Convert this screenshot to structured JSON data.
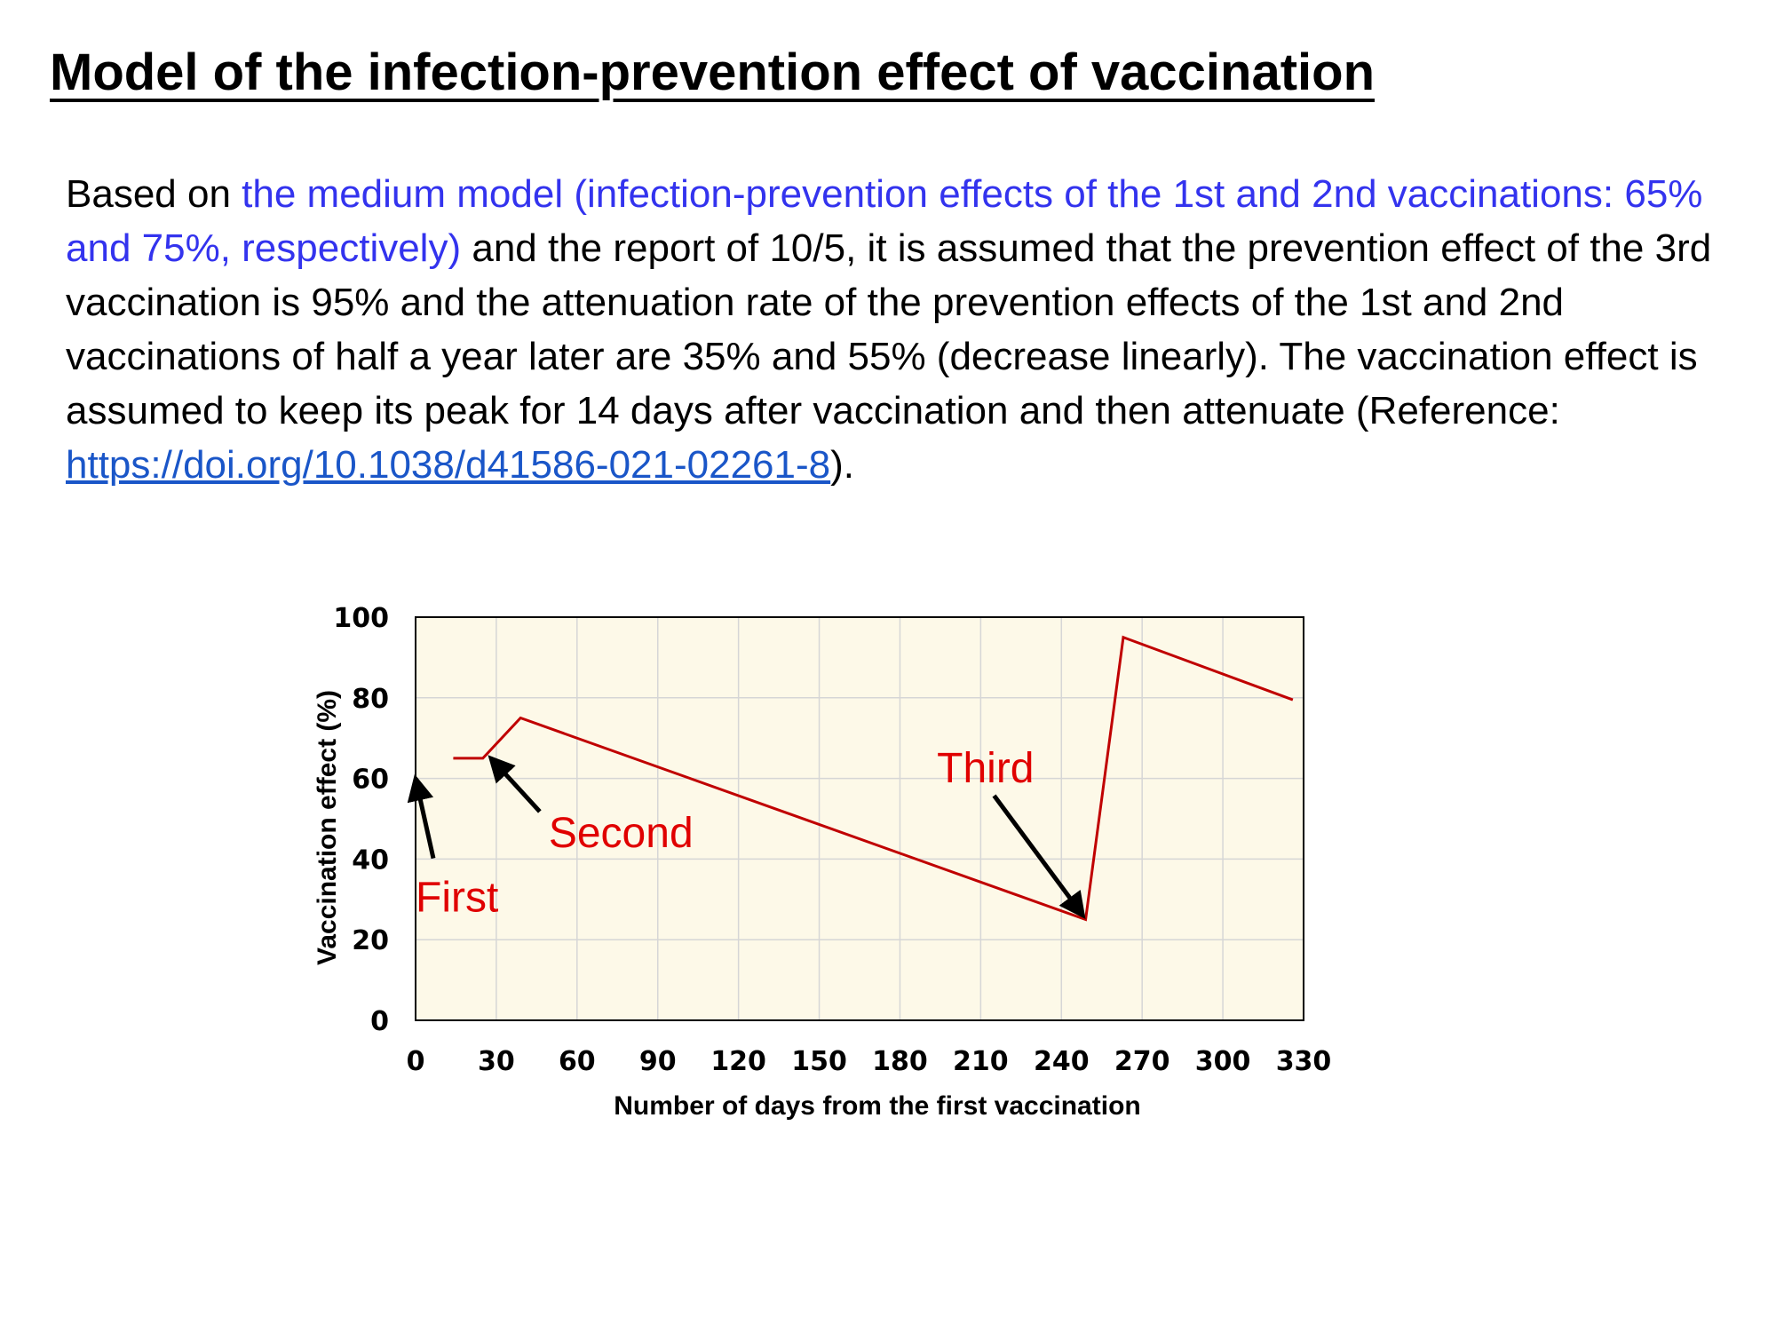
{
  "page": {
    "title": "Model of the infection-prevention effect of vaccination",
    "paragraph": {
      "part1": "Based on ",
      "highlight": "the medium model (infection-prevention effects of the 1st and 2nd vaccinations: 65% and 75%, respectively)",
      "part2": " and the report of 10/5, it is assumed that the prevention effect of the 3rd vaccination is 95% and the attenuation rate of the prevention effects of the 1st and 2nd vaccinations of half a year later are 35% and 55% (decrease linearly). The vaccination effect is assumed to keep its peak for 14 days after vaccination and then attenuate (Reference: ",
      "link": "https://doi.org/10.1038/d41586-021-02261-8",
      "part3": ")."
    }
  },
  "chart_data": {
    "type": "line",
    "title": "",
    "xlabel": "Number of days from the first vaccination",
    "ylabel": "Vaccination effect (%)",
    "xlim": [
      0,
      330
    ],
    "ylim": [
      0,
      100
    ],
    "xticks": [
      0,
      30,
      60,
      90,
      120,
      150,
      180,
      210,
      240,
      270,
      300,
      330
    ],
    "yticks": [
      0,
      20,
      40,
      60,
      80,
      100
    ],
    "grid": true,
    "colors": {
      "line": "#c00000",
      "plot_bg": "#fdf9e8",
      "grid": "#d6d6d6",
      "annotation": "#e00000"
    },
    "series": [
      {
        "x": [
          14,
          25,
          39,
          249,
          263,
          326
        ],
        "y": [
          65,
          65,
          75,
          25,
          95,
          79.5
        ]
      }
    ],
    "annotations": [
      {
        "text": "First",
        "x": 0,
        "y": 60
      },
      {
        "text": "Second",
        "x": 28,
        "y": 65
      },
      {
        "text": "Third",
        "x": 248,
        "y": 26
      }
    ]
  }
}
